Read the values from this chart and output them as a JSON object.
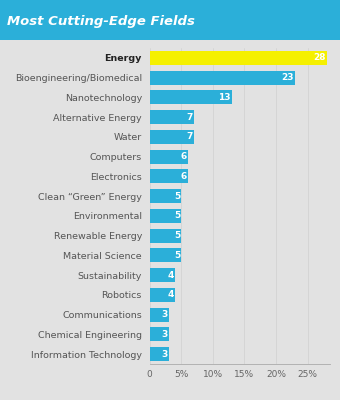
{
  "categories": [
    "Information Technology",
    "Chemical Engineering",
    "Communications",
    "Robotics",
    "Sustainability",
    "Material Science",
    "Renewable Energy",
    "Environmental",
    "Clean “Green” Energy",
    "Electronics",
    "Computers",
    "Water",
    "Alternative Energy",
    "Nanotechnology",
    "Bioengineering/Biomedical",
    "Energy"
  ],
  "values": [
    3,
    3,
    3,
    4,
    4,
    5,
    5,
    5,
    5,
    6,
    6,
    7,
    7,
    13,
    23,
    28
  ],
  "bar_colors": [
    "#2bafd9",
    "#2bafd9",
    "#2bafd9",
    "#2bafd9",
    "#2bafd9",
    "#2bafd9",
    "#2bafd9",
    "#2bafd9",
    "#2bafd9",
    "#2bafd9",
    "#2bafd9",
    "#2bafd9",
    "#2bafd9",
    "#2bafd9",
    "#2bafd9",
    "#f5f000"
  ],
  "title": "Most Cutting-Edge Fields",
  "title_bg_color": "#2bafd9",
  "title_text_color": "#ffffff",
  "bg_color": "#e2e2e2",
  "label_color": "#ffffff",
  "xlim": [
    0,
    28.5
  ],
  "xtick_values": [
    0,
    5,
    10,
    15,
    20,
    25
  ],
  "xtick_labels": [
    "0",
    "5%",
    "10%",
    "15%",
    "20%",
    "25%"
  ]
}
